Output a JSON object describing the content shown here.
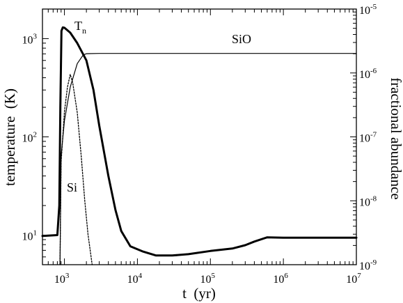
{
  "chart_data": {
    "type": "line",
    "xlabel": "t  (yr)",
    "ylabel_left": "temperature  (K)",
    "ylabel_right": "fractional abundance",
    "xscale": "log",
    "yscale_left": "log",
    "yscale_right": "log",
    "xlim": [
      500,
      10000000
    ],
    "ylim_left": [
      5,
      2000
    ],
    "ylim_right": [
      1e-09,
      1e-05
    ],
    "x_ticks": [
      {
        "base": "10",
        "exp": "3"
      },
      {
        "base": "10",
        "exp": "4"
      },
      {
        "base": "10",
        "exp": "5"
      },
      {
        "base": "10",
        "exp": "6"
      },
      {
        "base": "10",
        "exp": "7"
      }
    ],
    "y_left_ticks": [
      {
        "base": "10",
        "exp": "1"
      },
      {
        "base": "10",
        "exp": "2"
      },
      {
        "base": "10",
        "exp": "3"
      }
    ],
    "y_right_ticks": [
      {
        "base": "10",
        "exp": "-9"
      },
      {
        "base": "10",
        "exp": "-8"
      },
      {
        "base": "10",
        "exp": "-7"
      },
      {
        "base": "10",
        "exp": "-6"
      },
      {
        "base": "10",
        "exp": "-5"
      }
    ],
    "series": [
      {
        "name": "T_n",
        "label_main": "T",
        "label_sub": "n",
        "axis": "left",
        "style": "thick",
        "points": [
          [
            500,
            9.8
          ],
          [
            800,
            10
          ],
          [
            850,
            20
          ],
          [
            880,
            200
          ],
          [
            910,
            1200
          ],
          [
            950,
            1300
          ],
          [
            1000,
            1290
          ],
          [
            1200,
            1150
          ],
          [
            1500,
            900
          ],
          [
            2000,
            600
          ],
          [
            2500,
            300
          ],
          [
            3000,
            130
          ],
          [
            4000,
            40
          ],
          [
            5000,
            18
          ],
          [
            6000,
            11
          ],
          [
            8000,
            7.7
          ],
          [
            12000,
            6.8
          ],
          [
            18000,
            6.2
          ],
          [
            30000,
            6.2
          ],
          [
            50000,
            6.4
          ],
          [
            100000,
            6.9
          ],
          [
            200000,
            7.3
          ],
          [
            300000,
            7.9
          ],
          [
            400000,
            8.6
          ],
          [
            600000,
            9.5
          ],
          [
            1000000,
            9.4
          ],
          [
            10000000,
            9.4
          ]
        ]
      },
      {
        "name": "SiO",
        "label": "SiO",
        "axis": "right",
        "style": "thin",
        "points": [
          [
            870,
            1e-09
          ],
          [
            900,
            5e-08
          ],
          [
            1000,
            1.8e-07
          ],
          [
            1200,
            6e-07
          ],
          [
            1500,
            1.4e-06
          ],
          [
            1800,
            1.9e-06
          ],
          [
            2000,
            2e-06
          ],
          [
            3000,
            2.02e-06
          ],
          [
            10000000,
            2.02e-06
          ]
        ]
      },
      {
        "name": "Si",
        "label": "Si",
        "axis": "right",
        "style": "dotted",
        "points": [
          [
            870,
            1e-09
          ],
          [
            900,
            4e-08
          ],
          [
            1000,
            2.5e-07
          ],
          [
            1100,
            6e-07
          ],
          [
            1200,
            9.5e-07
          ],
          [
            1300,
            7e-07
          ],
          [
            1500,
            2.4e-07
          ],
          [
            1700,
            5e-08
          ],
          [
            1900,
            1e-08
          ],
          [
            2100,
            3e-09
          ],
          [
            2400,
            1e-09
          ]
        ]
      }
    ]
  }
}
